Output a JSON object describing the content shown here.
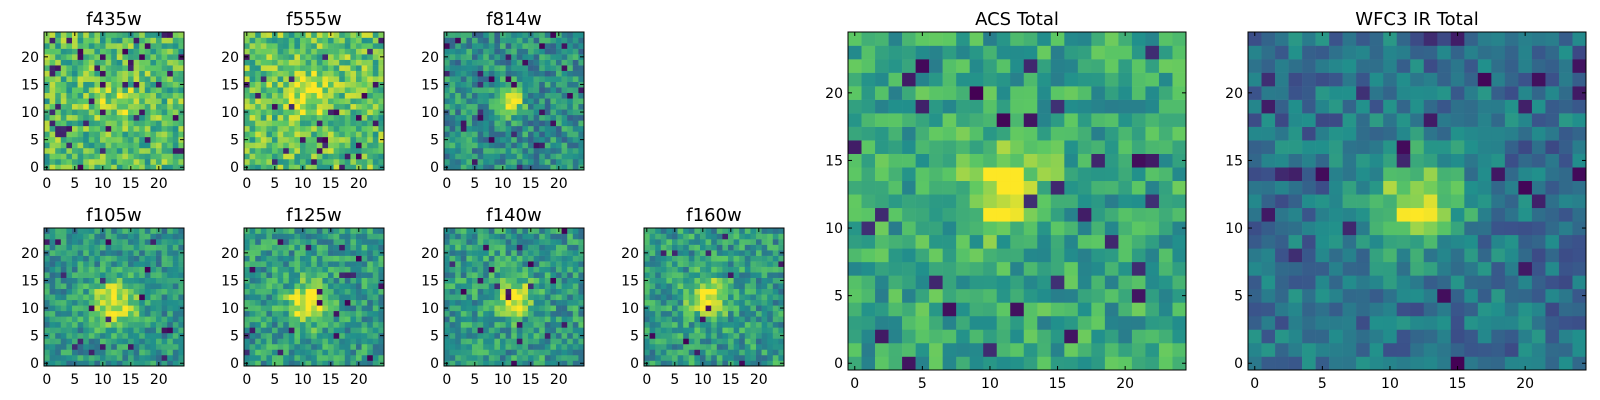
{
  "figure": {
    "description_free": true,
    "colormap": "viridis",
    "colormap_stops": [
      "#440154",
      "#3b528b",
      "#21908c",
      "#5dc863",
      "#fde725"
    ]
  },
  "chart_data": [
    {
      "type": "heatmap",
      "id": "f435w",
      "title": "f435w",
      "grid": [
        25,
        25
      ],
      "xticks": [
        0,
        5,
        10,
        15,
        20
      ],
      "yticks": [
        0,
        5,
        10,
        15,
        20
      ],
      "xlim": [
        0,
        25
      ],
      "ylim": [
        0,
        25
      ],
      "source": {
        "center": [
          12,
          12
        ],
        "sigma": 3.0,
        "peak": 0.15
      },
      "base_level": 0.7,
      "noise_amp": 0.22,
      "dark_fraction": 0.06,
      "seed": 101
    },
    {
      "type": "heatmap",
      "id": "f555w",
      "title": "f555w",
      "grid": [
        25,
        25
      ],
      "xticks": [
        0,
        5,
        10,
        15,
        20
      ],
      "yticks": [
        0,
        5,
        10,
        15,
        20
      ],
      "xlim": [
        0,
        25
      ],
      "ylim": [
        0,
        25
      ],
      "source": {
        "center": [
          11,
          14
        ],
        "sigma": 3.0,
        "peak": 0.2
      },
      "base_level": 0.72,
      "noise_amp": 0.22,
      "dark_fraction": 0.06,
      "seed": 202
    },
    {
      "type": "heatmap",
      "id": "f814w",
      "title": "f814w",
      "grid": [
        25,
        25
      ],
      "xticks": [
        0,
        5,
        10,
        15,
        20
      ],
      "yticks": [
        0,
        5,
        10,
        15,
        20
      ],
      "xlim": [
        0,
        25
      ],
      "ylim": [
        0,
        25
      ],
      "source": {
        "center": [
          11,
          12
        ],
        "sigma": 1.8,
        "peak": 0.55
      },
      "base_level": 0.5,
      "noise_amp": 0.2,
      "dark_fraction": 0.05,
      "seed": 303
    },
    {
      "type": "heatmap",
      "id": "f105w",
      "title": "f105w",
      "grid": [
        25,
        25
      ],
      "xticks": [
        0,
        5,
        10,
        15,
        20
      ],
      "yticks": [
        0,
        5,
        10,
        15,
        20
      ],
      "xlim": [
        0,
        25
      ],
      "ylim": [
        0,
        25
      ],
      "source": {
        "center": [
          12,
          11
        ],
        "sigma": 3.2,
        "peak": 0.45
      },
      "base_level": 0.52,
      "noise_amp": 0.18,
      "dark_fraction": 0.03,
      "seed": 404
    },
    {
      "type": "heatmap",
      "id": "f125w",
      "title": "f125w",
      "grid": [
        25,
        25
      ],
      "xticks": [
        0,
        5,
        10,
        15,
        20
      ],
      "yticks": [
        0,
        5,
        10,
        15,
        20
      ],
      "xlim": [
        0,
        25
      ],
      "ylim": [
        0,
        25
      ],
      "source": {
        "center": [
          11,
          11
        ],
        "sigma": 2.6,
        "peak": 0.5
      },
      "base_level": 0.55,
      "noise_amp": 0.2,
      "dark_fraction": 0.04,
      "seed": 505
    },
    {
      "type": "heatmap",
      "id": "f140w",
      "title": "f140w",
      "grid": [
        25,
        25
      ],
      "xticks": [
        0,
        5,
        10,
        15,
        20
      ],
      "yticks": [
        0,
        5,
        10,
        15,
        20
      ],
      "xlim": [
        0,
        25
      ],
      "ylim": [
        0,
        25
      ],
      "source": {
        "center": [
          12,
          12
        ],
        "sigma": 2.4,
        "peak": 0.45
      },
      "base_level": 0.55,
      "noise_amp": 0.2,
      "dark_fraction": 0.03,
      "seed": 606
    },
    {
      "type": "heatmap",
      "id": "f160w",
      "title": "f160w",
      "grid": [
        25,
        25
      ],
      "xticks": [
        0,
        5,
        10,
        15,
        20
      ],
      "yticks": [
        0,
        5,
        10,
        15,
        20
      ],
      "xlim": [
        0,
        25
      ],
      "ylim": [
        0,
        25
      ],
      "source": {
        "center": [
          11,
          12
        ],
        "sigma": 2.4,
        "peak": 0.5
      },
      "base_level": 0.55,
      "noise_amp": 0.2,
      "dark_fraction": 0.03,
      "seed": 707
    },
    {
      "type": "heatmap",
      "id": "acs-total",
      "title": "ACS Total",
      "grid": [
        25,
        25
      ],
      "xticks": [
        0,
        5,
        10,
        15,
        20
      ],
      "yticks": [
        0,
        5,
        10,
        15,
        20
      ],
      "xlim": [
        0,
        25
      ],
      "ylim": [
        0,
        25
      ],
      "source": {
        "center": [
          11,
          13
        ],
        "sigma": 2.2,
        "peak": 0.4
      },
      "base_level": 0.6,
      "noise_amp": 0.18,
      "dark_fraction": 0.04,
      "seed": 808
    },
    {
      "type": "heatmap",
      "id": "wfc3-ir-total",
      "title": "WFC3 IR Total",
      "grid": [
        25,
        25
      ],
      "xticks": [
        0,
        5,
        10,
        15,
        20
      ],
      "yticks": [
        0,
        5,
        10,
        15,
        20
      ],
      "xlim": [
        0,
        25
      ],
      "ylim": [
        0,
        25
      ],
      "source": {
        "center": [
          12,
          12
        ],
        "sigma": 2.6,
        "peak": 0.55
      },
      "base_level": 0.38,
      "noise_amp": 0.16,
      "dark_fraction": 0.04,
      "seed": 909
    }
  ]
}
